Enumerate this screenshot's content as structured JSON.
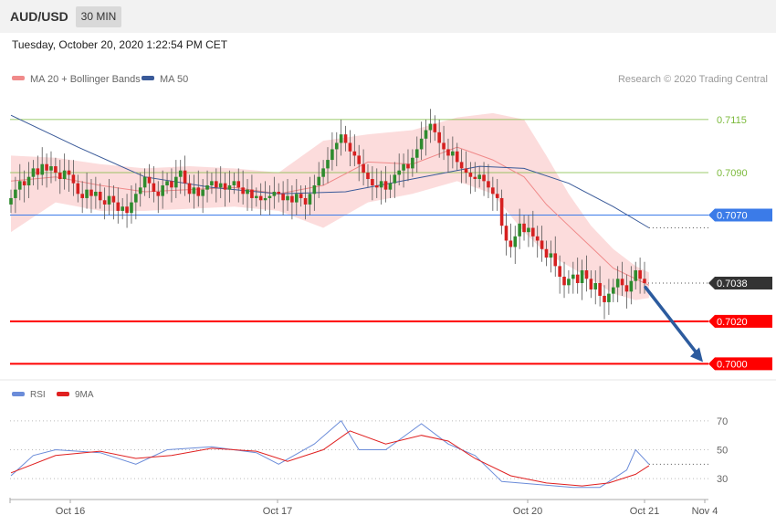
{
  "header": {
    "symbol": "AUD/USD",
    "timeframe": "30 MIN"
  },
  "datetime": "Tuesday, October 20, 2020 1:22:54 PM CET",
  "legend": {
    "ma20": "MA 20 + Bollinger Bands",
    "ma50": "MA 50",
    "credit": "Research © 2020 Trading Central",
    "rsi": "RSI",
    "ma9": "9MA"
  },
  "colors": {
    "up": "#2e8b2e",
    "down": "#d62020",
    "band": "#fbd6d6",
    "ma20": "#f08a8a",
    "ma50": "#3a5a99",
    "support": "#ff0000",
    "pivot": "#3b7be8",
    "resistance": "#7cba3c",
    "current": "#333333",
    "arrow": "#2c5b9e",
    "rsi": "#6b8cd9",
    "rsi_ma": "#e02020"
  },
  "chart_data": [
    {
      "type": "candlestick",
      "title": "AUD/USD",
      "timeframe": "30 MIN",
      "ylim": [
        0.6995,
        0.713
      ],
      "x_ticks": [
        "Oct 16",
        "Oct 17",
        "Oct 20",
        "Oct 21",
        "Nov 4"
      ],
      "levels": [
        {
          "value": 0.7115,
          "label": "0.7115",
          "kind": "resistance"
        },
        {
          "value": 0.709,
          "label": "0.7090",
          "kind": "resistance"
        },
        {
          "value": 0.707,
          "label": "0.7070",
          "kind": "pivot"
        },
        {
          "value": 0.7038,
          "label": "0.7038",
          "kind": "current"
        },
        {
          "value": 0.702,
          "label": "0.7020",
          "kind": "support"
        },
        {
          "value": 0.7,
          "label": "0.7000",
          "kind": "support"
        }
      ],
      "close_path": [
        0.7078,
        0.7082,
        0.7086,
        0.7084,
        0.7088,
        0.7092,
        0.7089,
        0.7094,
        0.7091,
        0.7093,
        0.709,
        0.7087,
        0.7091,
        0.7089,
        0.7085,
        0.708,
        0.7078,
        0.7082,
        0.7079,
        0.7081,
        0.7077,
        0.7075,
        0.7079,
        0.7076,
        0.7072,
        0.7074,
        0.7071,
        0.7076,
        0.708,
        0.7083,
        0.7088,
        0.7085,
        0.7081,
        0.7079,
        0.7084,
        0.7086,
        0.7083,
        0.7088,
        0.7091,
        0.7085,
        0.708,
        0.7083,
        0.7079,
        0.7082,
        0.7084,
        0.7086,
        0.7083,
        0.7085,
        0.7082,
        0.7084,
        0.7086,
        0.7083,
        0.708,
        0.7082,
        0.7078,
        0.7079,
        0.7077,
        0.7078,
        0.7079,
        0.7081,
        0.708,
        0.7077,
        0.7079,
        0.7076,
        0.708,
        0.7078,
        0.7075,
        0.708,
        0.7084,
        0.7088,
        0.7092,
        0.7096,
        0.7101,
        0.7104,
        0.7108,
        0.7104,
        0.71,
        0.7098,
        0.7094,
        0.709,
        0.7087,
        0.7084,
        0.7083,
        0.7086,
        0.7082,
        0.7085,
        0.7089,
        0.7091,
        0.7094,
        0.7092,
        0.7097,
        0.7101,
        0.7106,
        0.711,
        0.7113,
        0.7109,
        0.7104,
        0.7101,
        0.7098,
        0.71,
        0.7095,
        0.7092,
        0.709,
        0.7088,
        0.7087,
        0.7089,
        0.7086,
        0.7083,
        0.708,
        0.7078,
        0.7065,
        0.7058,
        0.7055,
        0.706,
        0.7066,
        0.7062,
        0.7064,
        0.706,
        0.7058,
        0.7054,
        0.705,
        0.7052,
        0.7046,
        0.7041,
        0.7037,
        0.704,
        0.7042,
        0.7038,
        0.7044,
        0.704,
        0.7035,
        0.7038,
        0.7032,
        0.7029,
        0.7033,
        0.7036,
        0.704,
        0.7037,
        0.7034,
        0.7039,
        0.7044,
        0.704,
        0.7038
      ],
      "ma20": [
        [
          0,
          0.7086
        ],
        [
          10,
          0.7088
        ],
        [
          20,
          0.7084
        ],
        [
          30,
          0.7081
        ],
        [
          40,
          0.7082
        ],
        [
          50,
          0.7083
        ],
        [
          60,
          0.708
        ],
        [
          70,
          0.7084
        ],
        [
          80,
          0.7095
        ],
        [
          90,
          0.7094
        ],
        [
          100,
          0.7102
        ],
        [
          108,
          0.7096
        ],
        [
          115,
          0.7088
        ],
        [
          120,
          0.7075
        ],
        [
          125,
          0.7065
        ],
        [
          130,
          0.7055
        ],
        [
          135,
          0.7045
        ],
        [
          140,
          0.704
        ],
        [
          143,
          0.7037
        ]
      ],
      "bb_upper": [
        [
          0,
          0.7098
        ],
        [
          10,
          0.7097
        ],
        [
          20,
          0.7094
        ],
        [
          30,
          0.7092
        ],
        [
          40,
          0.7093
        ],
        [
          50,
          0.7092
        ],
        [
          60,
          0.709
        ],
        [
          70,
          0.7105
        ],
        [
          80,
          0.7108
        ],
        [
          90,
          0.711
        ],
        [
          100,
          0.7116
        ],
        [
          108,
          0.7118
        ],
        [
          115,
          0.7115
        ],
        [
          120,
          0.7098
        ],
        [
          125,
          0.708
        ],
        [
          130,
          0.7065
        ],
        [
          135,
          0.7054
        ],
        [
          140,
          0.7046
        ],
        [
          143,
          0.7043
        ]
      ],
      "bb_lower": [
        [
          0,
          0.7062
        ],
        [
          10,
          0.7076
        ],
        [
          20,
          0.7072
        ],
        [
          30,
          0.7072
        ],
        [
          40,
          0.7073
        ],
        [
          50,
          0.7074
        ],
        [
          60,
          0.7072
        ],
        [
          70,
          0.7064
        ],
        [
          80,
          0.7076
        ],
        [
          90,
          0.708
        ],
        [
          100,
          0.7086
        ],
        [
          108,
          0.708
        ],
        [
          115,
          0.7062
        ],
        [
          120,
          0.7052
        ],
        [
          125,
          0.7046
        ],
        [
          130,
          0.704
        ],
        [
          135,
          0.7033
        ],
        [
          140,
          0.703
        ],
        [
          143,
          0.7031
        ]
      ],
      "ma50": [
        [
          0,
          0.7117
        ],
        [
          15,
          0.7102
        ],
        [
          30,
          0.7088
        ],
        [
          45,
          0.7083
        ],
        [
          60,
          0.708
        ],
        [
          75,
          0.7081
        ],
        [
          90,
          0.7087
        ],
        [
          105,
          0.7093
        ],
        [
          115,
          0.7092
        ],
        [
          125,
          0.7085
        ],
        [
          135,
          0.7074
        ],
        [
          143,
          0.7064
        ]
      ],
      "projection": {
        "from": 0.7036,
        "to": 0.7
      }
    },
    {
      "type": "line",
      "title": "RSI",
      "ylim": [
        20,
        80
      ],
      "y_ticks": [
        "70",
        "50",
        "30"
      ],
      "rsi": [
        [
          0,
          32
        ],
        [
          5,
          46
        ],
        [
          10,
          50
        ],
        [
          20,
          48
        ],
        [
          28,
          40
        ],
        [
          35,
          50
        ],
        [
          45,
          52
        ],
        [
          55,
          48
        ],
        [
          60,
          40
        ],
        [
          68,
          54
        ],
        [
          74,
          70
        ],
        [
          78,
          50
        ],
        [
          84,
          50
        ],
        [
          92,
          68
        ],
        [
          98,
          54
        ],
        [
          104,
          46
        ],
        [
          110,
          28
        ],
        [
          118,
          26
        ],
        [
          126,
          24
        ],
        [
          132,
          24
        ],
        [
          138,
          36
        ],
        [
          140,
          50
        ],
        [
          143,
          40
        ]
      ],
      "rsi_ma": [
        [
          0,
          34
        ],
        [
          10,
          46
        ],
        [
          20,
          49
        ],
        [
          28,
          44
        ],
        [
          36,
          46
        ],
        [
          45,
          51
        ],
        [
          55,
          49
        ],
        [
          62,
          42
        ],
        [
          70,
          50
        ],
        [
          76,
          63
        ],
        [
          84,
          54
        ],
        [
          92,
          60
        ],
        [
          98,
          56
        ],
        [
          104,
          44
        ],
        [
          112,
          32
        ],
        [
          120,
          27
        ],
        [
          128,
          25
        ],
        [
          134,
          27
        ],
        [
          140,
          33
        ],
        [
          143,
          39
        ]
      ]
    }
  ]
}
